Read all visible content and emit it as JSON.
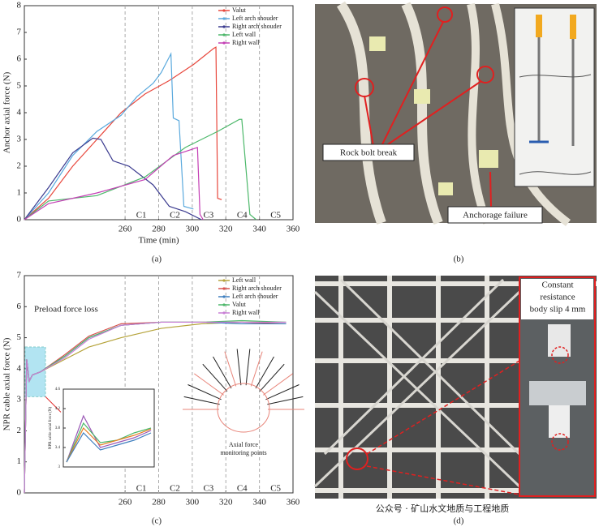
{
  "chart_data": [
    {
      "type": "line",
      "x_label": "Time (min)",
      "y_label": "Anchor axial force (N)",
      "xlim": [
        200,
        360
      ],
      "xticks": [
        260,
        280,
        300,
        320,
        340,
        360
      ],
      "ylim": [
        0,
        8
      ],
      "yticks": [
        0,
        1,
        2,
        3,
        4,
        5,
        6,
        7,
        8
      ],
      "phases": [
        {
          "value": 260,
          "label": "C1"
        },
        {
          "value": 280,
          "label": "C2"
        },
        {
          "value": 300,
          "label": "C3"
        },
        {
          "value": 320,
          "label": "C4"
        },
        {
          "value": 340,
          "label": "C5"
        }
      ],
      "legend": "upper right",
      "series": [
        {
          "name": "Valut",
          "color": "#e8473c",
          "x": [
            200,
            214.4,
            228.8,
            243.2,
            257.6,
            271.9,
            286.3,
            300.7,
            312.7,
            314.1,
            315.1,
            317.5
          ],
          "values": [
            0,
            0.8,
            2.0,
            3.0,
            4.0,
            4.7,
            5.2,
            5.8,
            6.4,
            6.45,
            0.8,
            0.75
          ]
        },
        {
          "name": "Left  arch shouder",
          "color": "#5aa9dd",
          "x": [
            200,
            214.4,
            228.8,
            243.2,
            257.6,
            267.1,
            276.7,
            281.5,
            287.3,
            288.7,
            292.1,
            295.0,
            300.7
          ],
          "values": [
            0,
            1.0,
            2.4,
            3.3,
            3.9,
            4.6,
            5.1,
            5.5,
            6.2,
            3.8,
            3.7,
            0.5,
            0.4
          ]
        },
        {
          "name": "Right arch shouder",
          "color": "#3b3b8f",
          "x": [
            200,
            214.4,
            228.8,
            240.8,
            245.6,
            252.8,
            262.3,
            276.7,
            286.3,
            295.9,
            305.5
          ],
          "values": [
            0,
            1.2,
            2.5,
            3.05,
            3.0,
            2.2,
            2.0,
            1.3,
            0.5,
            0.3,
            0
          ]
        },
        {
          "name": "Left  wall",
          "color": "#4cb86a",
          "x": [
            200,
            214.4,
            243.2,
            271.9,
            295.9,
            315.1,
            328.1,
            329.5,
            334.3,
            338.1
          ],
          "values": [
            0,
            0.7,
            0.9,
            1.6,
            2.7,
            3.3,
            3.75,
            3.75,
            0.2,
            0
          ]
        },
        {
          "name": "Right wall",
          "color": "#c43fb5",
          "x": [
            200,
            214.4,
            243.2,
            271.9,
            288.7,
            303.1,
            304.6,
            306.5
          ],
          "values": [
            0,
            0.6,
            1.0,
            1.5,
            2.4,
            2.7,
            0.2,
            0
          ]
        }
      ]
    },
    {
      "type": "line",
      "y_label": "NPR cable axial force (N)",
      "annotation": "Preload force loss",
      "diagram_label": [
        "Axial force",
        "monitoring points"
      ],
      "xlim": [
        200,
        360
      ],
      "xticks": [
        260,
        280,
        300,
        320,
        340,
        360
      ],
      "ylim": [
        0,
        7
      ],
      "yticks": [
        0,
        1,
        2,
        3,
        4,
        5,
        6,
        7
      ],
      "phases": [
        {
          "value": 260,
          "label": "C1"
        },
        {
          "value": 280,
          "label": "C2"
        },
        {
          "value": 300,
          "label": "C3"
        },
        {
          "value": 320,
          "label": "C4"
        },
        {
          "value": 340,
          "label": "C5"
        }
      ],
      "legend": "upper right",
      "series": [
        {
          "name": "Left wall",
          "color": "#b5a33a",
          "x": [
            200,
            201.4,
            202.9,
            204.8,
            209.6,
            224,
            238.4,
            257.6,
            281.5,
            305.5,
            329.5,
            355.9
          ],
          "values": [
            0,
            4.3,
            3.6,
            3.8,
            3.9,
            4.3,
            4.7,
            5.0,
            5.3,
            5.45,
            5.5,
            5.5
          ]
        },
        {
          "name": "Right arch shouder",
          "color": "#d9534f",
          "x": [
            200,
            201.4,
            202.9,
            204.8,
            209.6,
            224,
            238.4,
            257.6,
            281.5,
            305.5,
            329.5,
            355.9
          ],
          "values": [
            0,
            4.3,
            3.6,
            3.8,
            3.9,
            4.45,
            5.05,
            5.45,
            5.5,
            5.5,
            5.5,
            5.45
          ]
        },
        {
          "name": "Left arch shouder",
          "color": "#3f7fbf",
          "x": [
            200,
            201.4,
            202.9,
            204.8,
            209.6,
            224,
            238.4,
            257.6,
            281.5,
            305.5,
            329.5,
            355.9
          ],
          "values": [
            0,
            4.3,
            3.6,
            3.8,
            3.9,
            4.4,
            5.0,
            5.4,
            5.5,
            5.5,
            5.45,
            5.45
          ]
        },
        {
          "name": "Valut",
          "color": "#4cb86a",
          "x": [
            200,
            201.4,
            202.9,
            204.8,
            209.6,
            224,
            238.4,
            257.6,
            281.5,
            305.5,
            329.5,
            355.9
          ],
          "values": [
            0,
            4.3,
            3.6,
            3.8,
            3.9,
            4.4,
            5.0,
            5.4,
            5.5,
            5.5,
            5.55,
            5.5
          ]
        },
        {
          "name": "Right wall",
          "color": "#c97fd6",
          "x": [
            200,
            201.4,
            202.9,
            204.8,
            209.6,
            224,
            238.4,
            257.6,
            281.5,
            305.5,
            329.5,
            355.9
          ],
          "values": [
            0,
            4.3,
            3.6,
            3.8,
            3.9,
            4.35,
            4.95,
            5.4,
            5.5,
            5.5,
            5.5,
            5.5
          ]
        }
      ]
    },
    {
      "type": "line",
      "y_label": "NPR cable axial force (N)",
      "categories": [
        null,
        null,
        null,
        null,
        null,
        null
      ],
      "ylim": [
        3.0,
        4.6
      ],
      "yticks": [
        3.0,
        3.4,
        3.8,
        4.2,
        4.6
      ],
      "series": [
        {
          "color": "#9b59b6",
          "values": [
            3.1,
            4.05,
            3.4,
            3.5,
            3.6,
            3.75
          ]
        },
        {
          "color": "#4cb86a",
          "values": [
            3.1,
            3.9,
            3.5,
            3.55,
            3.7,
            3.8
          ]
        },
        {
          "color": "#e67e22",
          "values": [
            3.1,
            3.8,
            3.45,
            3.55,
            3.65,
            3.78
          ]
        },
        {
          "color": "#3f7fbf",
          "values": [
            3.1,
            3.7,
            3.35,
            3.45,
            3.55,
            3.7
          ]
        }
      ]
    }
  ],
  "photos": {
    "b_labels": [
      "Rock bolt break",
      "Anchorage failure"
    ],
    "d_label": [
      "Constant",
      "resistance",
      "body slip 4 mm"
    ],
    "watermark": "公众号 · 矿山水文地质与工程地质"
  },
  "panel_labels": [
    "(a)",
    "(b)",
    "(c)",
    "(d)"
  ]
}
